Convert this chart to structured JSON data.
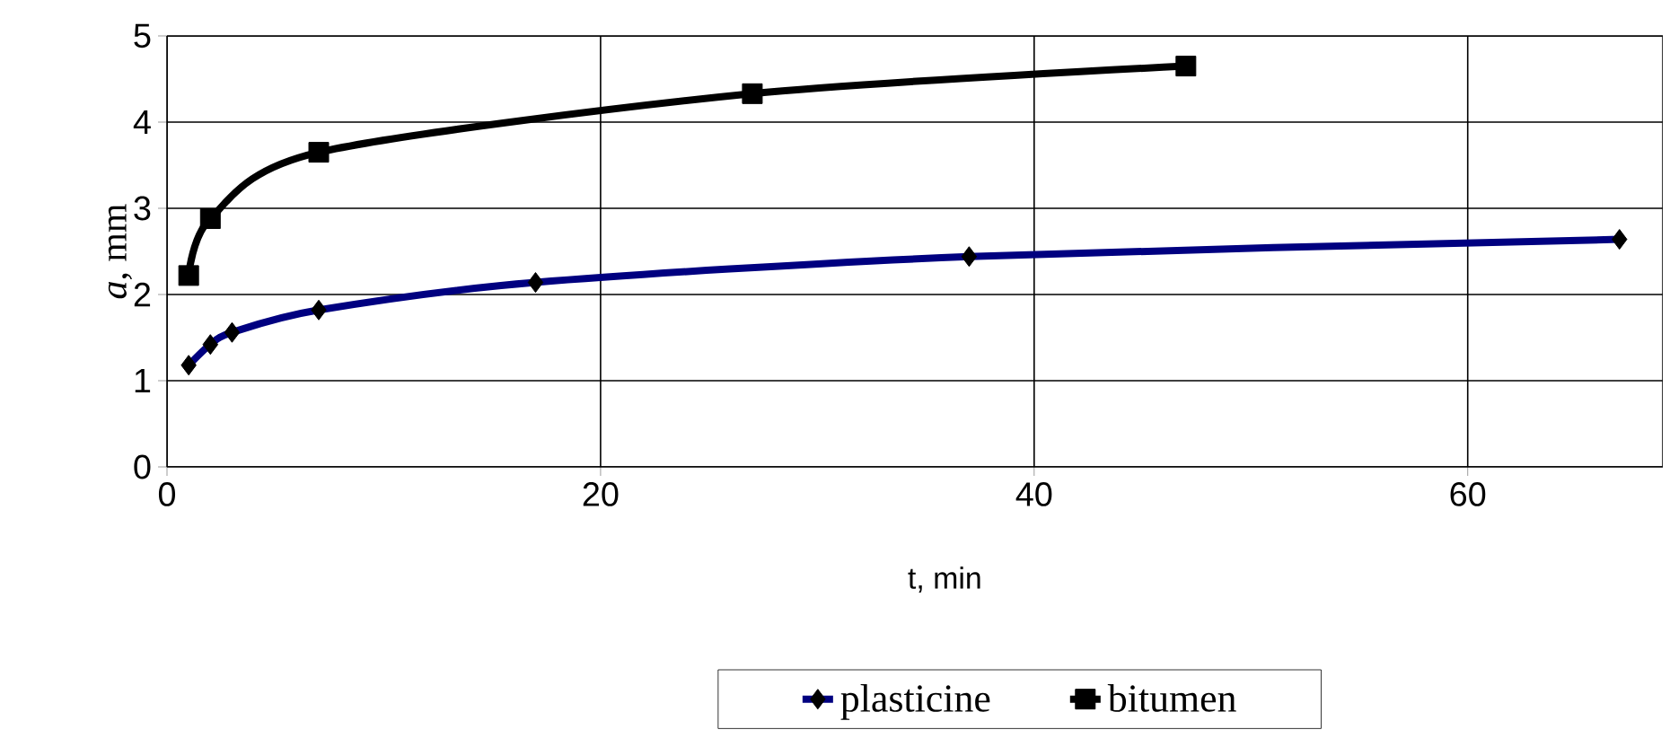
{
  "chart_data": {
    "type": "line",
    "xlabel": "t, min",
    "ylabel": "*a*, mm",
    "xlim": [
      0,
      69
    ],
    "ylim": [
      0,
      5
    ],
    "xticks": [
      0,
      20,
      40,
      60
    ],
    "yticks": [
      0,
      1,
      2,
      3,
      4,
      5
    ],
    "grid": true,
    "legend": "bottom",
    "series": [
      {
        "name": "plasticine",
        "color": "#000080",
        "marker": "diamond",
        "x": [
          1,
          2,
          3,
          7,
          17,
          37,
          67
        ],
        "values": [
          1.18,
          1.42,
          1.56,
          1.82,
          2.14,
          2.44,
          2.64
        ]
      },
      {
        "name": "bitumen",
        "color": "#000000",
        "marker": "square",
        "x": [
          1,
          2,
          7,
          27,
          47
        ],
        "values": [
          2.22,
          2.88,
          3.65,
          4.33,
          4.65
        ]
      }
    ]
  }
}
